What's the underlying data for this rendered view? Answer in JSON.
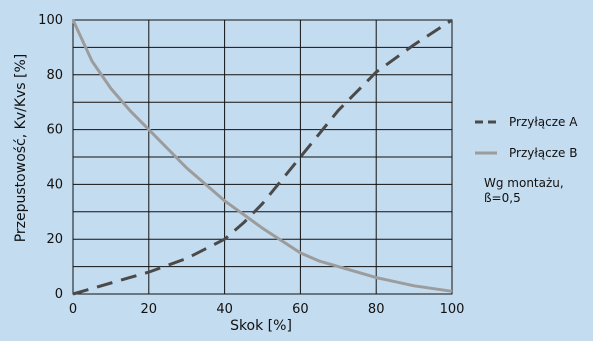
{
  "chart_data": {
    "type": "line",
    "xlabel": "Skok [%]",
    "ylabel": "Przepustowość, Kv/Kvs [%]",
    "xlim": [
      0,
      100
    ],
    "ylim": [
      0,
      100
    ],
    "x_ticks": [
      "0",
      "20",
      "40",
      "60",
      "80",
      "100"
    ],
    "y_ticks": [
      "0",
      "20",
      "40",
      "60",
      "80",
      "100"
    ],
    "grid": true,
    "legend_position": "right",
    "series": [
      {
        "name": "Przyłącze A",
        "style": "dashed",
        "color": "#4a4a4a",
        "x": [
          0,
          10,
          20,
          30,
          40,
          45,
          50,
          60,
          70,
          80,
          90,
          100
        ],
        "y": [
          0,
          4,
          8,
          13,
          20,
          26,
          33,
          50,
          67,
          81,
          91,
          100
        ]
      },
      {
        "name": "Przyłącze B",
        "style": "solid",
        "color": "#9c9c9c",
        "x": [
          0,
          5,
          10,
          15,
          20,
          30,
          40,
          50,
          60,
          65,
          70,
          80,
          90,
          100
        ],
        "y": [
          100,
          85,
          75,
          67,
          60,
          46,
          34,
          24,
          15,
          12,
          10,
          6,
          3,
          1
        ]
      }
    ],
    "note_lines": [
      "Wg montażu,",
      "ß=0,5"
    ]
  }
}
